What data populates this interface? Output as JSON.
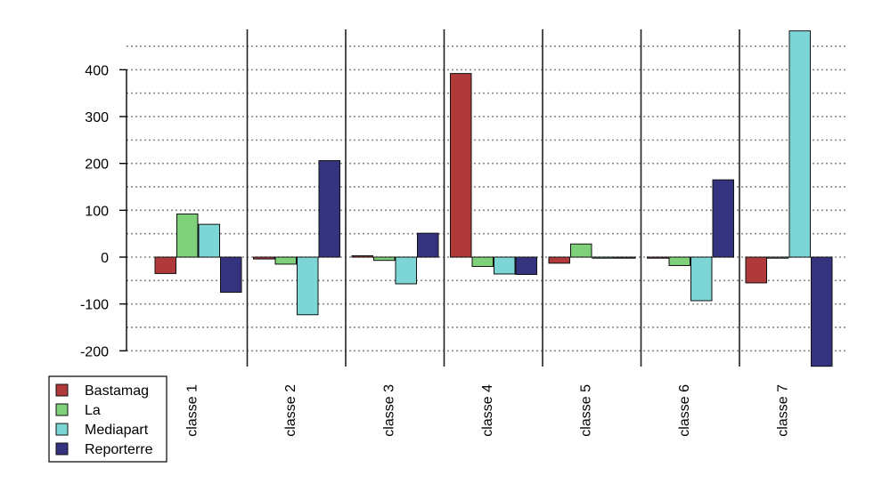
{
  "chart_data": {
    "type": "bar",
    "categories": [
      "classe 1",
      "classe 2",
      "classe 3",
      "classe 4",
      "classe 5",
      "classe 6",
      "classe 7"
    ],
    "series": [
      {
        "name": "Bastamag",
        "color": "#b03a3a",
        "values": [
          -35,
          -4,
          3,
          392,
          -13,
          -2,
          -55
        ]
      },
      {
        "name": "La",
        "color": "#7fd07a",
        "values": [
          92,
          -15,
          -7,
          -20,
          28,
          -18,
          0
        ]
      },
      {
        "name": "Mediapart",
        "color": "#7dd6d6",
        "values": [
          70,
          -123,
          -57,
          -36,
          0,
          -93,
          483
        ]
      },
      {
        "name": "Reporterre",
        "color": "#33337f",
        "values": [
          -75,
          206,
          51,
          -37,
          0,
          165,
          -233
        ]
      }
    ],
    "yticks": [
      -200,
      -100,
      0,
      100,
      200,
      300,
      400
    ],
    "ylim": [
      -233,
      483
    ],
    "grid": true,
    "legend_position": "bottom-left",
    "title": "",
    "xlabel": "",
    "ylabel": ""
  }
}
